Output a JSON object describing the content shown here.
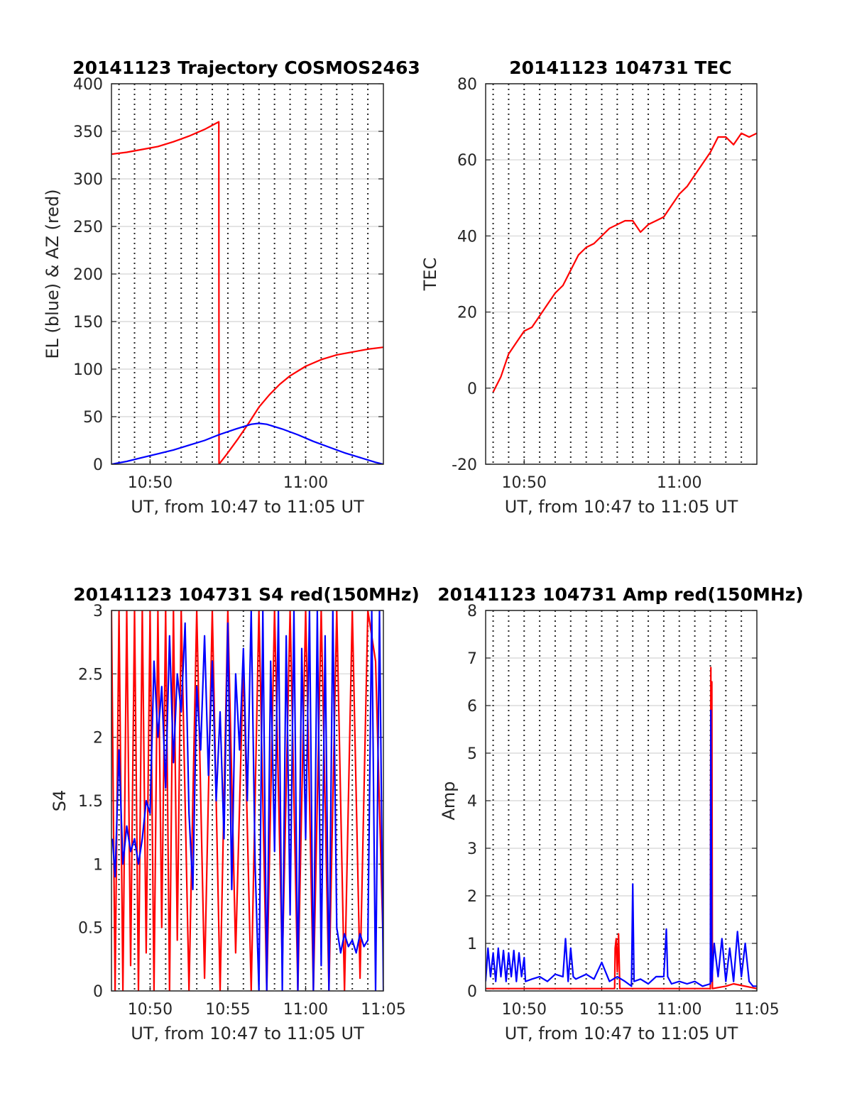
{
  "figure_title": "",
  "chart_data": [
    {
      "id": "trajectory",
      "type": "line",
      "title": "20141123 Trajectory COSMOS2463",
      "xlabel": "UT, from 10:47 to 11:05 UT",
      "ylabel": "EL (blue) & AZ (red)",
      "xlim": [
        "10:47:31",
        "11:05:00"
      ],
      "ylim": [
        0,
        400
      ],
      "yticks": [
        "0",
        "50",
        "100",
        "150",
        "200",
        "250",
        "300",
        "350",
        "400"
      ],
      "xticks": [
        {
          "t": "10:50",
          "label": "10:50"
        },
        {
          "t": "11:00",
          "label": "11:00"
        }
      ],
      "vgrid": [
        "10:48",
        "10:49",
        "10:50",
        "10:51",
        "10:52",
        "10:53",
        "10:54",
        "10:55",
        "10:56",
        "10:57",
        "10:58",
        "10:59",
        "11:00",
        "11:01",
        "11:02",
        "11:03",
        "11:04"
      ],
      "grid": true,
      "series": [
        {
          "color": "#ff0000",
          "x": [
            "10:47:31",
            "10:48:30",
            "10:49:30",
            "10:50:30",
            "10:51:30",
            "10:52:30",
            "10:53:30",
            "10:54:25",
            "10:54:26",
            "10:55:00",
            "10:55:40",
            "10:56:20",
            "10:57:00",
            "10:57:40",
            "10:58:20",
            "10:59:00",
            "11:00:00",
            "11:01:00",
            "11:02:00",
            "11:03:00",
            "11:04:00",
            "11:05:00"
          ],
          "y": [
            326,
            328,
            331,
            334,
            339,
            345,
            352,
            360,
            0,
            12,
            27,
            43,
            60,
            73,
            84,
            93,
            103,
            110,
            115,
            118,
            121,
            123
          ]
        },
        {
          "color": "#0000ff",
          "x": [
            "10:47:31",
            "10:48:30",
            "10:49:30",
            "10:50:30",
            "10:51:30",
            "10:52:30",
            "10:53:30",
            "10:54:25",
            "10:55:30",
            "10:56:30",
            "10:57:00",
            "10:57:30",
            "10:58:30",
            "10:59:30",
            "11:00:30",
            "11:01:30",
            "11:02:30",
            "11:03:30",
            "11:04:30",
            "11:05:00"
          ],
          "y": [
            0,
            3,
            7,
            11,
            15,
            20,
            25,
            31,
            37,
            42,
            43,
            42,
            37,
            31,
            24,
            18,
            12,
            7,
            2,
            0
          ]
        }
      ]
    },
    {
      "id": "tec",
      "type": "line",
      "title": "20141123 104731 TEC",
      "xlabel": "UT, from 10:47 to 11:05 UT",
      "ylabel": "TEC",
      "xlim": [
        "10:47:31",
        "11:05:00"
      ],
      "ylim": [
        -20,
        80
      ],
      "yticks": [
        "-20",
        "0",
        "20",
        "40",
        "60",
        "80"
      ],
      "xticks": [
        {
          "t": "10:50",
          "label": "10:50"
        },
        {
          "t": "11:00",
          "label": "11:00"
        }
      ],
      "vgrid": [
        "10:48",
        "10:49",
        "10:50",
        "10:51",
        "10:52",
        "10:53",
        "10:54",
        "10:55",
        "10:56",
        "10:57",
        "10:58",
        "10:59",
        "11:00",
        "11:01",
        "11:02",
        "11:03",
        "11:04"
      ],
      "grid": true,
      "series": [
        {
          "color": "#ff0000",
          "x": [
            "10:48:00",
            "10:48:30",
            "10:49:00",
            "10:49:30",
            "10:50:00",
            "10:50:30",
            "10:51:00",
            "10:51:30",
            "10:52:00",
            "10:52:30",
            "10:53:00",
            "10:53:30",
            "10:54:00",
            "10:54:30",
            "10:55:00",
            "10:55:30",
            "10:56:00",
            "10:56:30",
            "10:57:00",
            "10:57:30",
            "10:58:00",
            "10:58:30",
            "10:59:00",
            "10:59:30",
            "11:00:00",
            "11:00:30",
            "11:01:00",
            "11:01:30",
            "11:02:00",
            "11:02:30",
            "11:03:00",
            "11:03:30",
            "11:04:00",
            "11:04:30",
            "11:05:00"
          ],
          "y": [
            -1,
            3,
            9,
            12,
            15,
            16,
            19,
            22,
            25,
            27,
            31,
            35,
            37,
            38,
            40,
            42,
            43,
            44,
            44,
            41,
            43,
            44,
            45,
            48,
            51,
            53,
            56,
            59,
            62,
            66,
            66,
            64,
            67,
            66,
            67
          ]
        }
      ]
    },
    {
      "id": "s4",
      "type": "line",
      "title": "20141123 104731 S4 red(150MHz)",
      "xlabel": "UT, from 10:47 to 11:05 UT",
      "ylabel": "S4",
      "xlim": [
        "10:47:31",
        "11:05:00"
      ],
      "ylim": [
        0,
        3
      ],
      "yticks": [
        "0",
        "0.5",
        "1",
        "1.5",
        "2",
        "2.5",
        "3"
      ],
      "xticks": [
        {
          "t": "10:50",
          "label": "10:50"
        },
        {
          "t": "10:55",
          "label": "10:55"
        },
        {
          "t": "11:00",
          "label": "11:00"
        },
        {
          "t": "11:05",
          "label": "11:05"
        }
      ],
      "vgrid": [
        "10:48",
        "10:49",
        "10:50",
        "10:51",
        "10:52",
        "10:53",
        "10:54",
        "10:55",
        "10:56",
        "10:57",
        "10:58",
        "10:59",
        "11:00",
        "11:01",
        "11:02",
        "11:03",
        "11:04"
      ],
      "grid": true,
      "series": [
        {
          "color": "#ff0000",
          "x": [
            "10:47:31",
            "10:47:45",
            "10:48:00",
            "10:48:15",
            "10:48:30",
            "10:48:45",
            "10:49:00",
            "10:49:15",
            "10:49:30",
            "10:49:45",
            "10:50:00",
            "10:50:15",
            "10:50:30",
            "10:50:45",
            "10:51:00",
            "10:51:15",
            "10:51:30",
            "10:51:45",
            "10:52:00",
            "10:52:30",
            "10:53:00",
            "10:53:30",
            "10:54:00",
            "10:54:30",
            "10:55:00",
            "10:55:30",
            "10:56:00",
            "10:56:30",
            "10:57:00",
            "10:57:30",
            "10:58:00",
            "10:58:30",
            "10:59:00",
            "10:59:30",
            "11:00:00",
            "11:00:30",
            "11:01:00",
            "11:01:30",
            "11:02:00",
            "11:02:30",
            "11:03:00",
            "11:03:30",
            "11:04:00",
            "11:04:30",
            "11:05:00"
          ],
          "y": [
            3,
            0,
            3,
            0,
            3,
            0.2,
            3,
            0,
            3,
            0.3,
            3,
            0,
            3,
            0.5,
            3,
            0,
            3,
            0.4,
            3,
            0,
            3,
            0.1,
            3,
            0,
            3,
            0.3,
            2.6,
            0,
            3,
            0,
            3,
            0.2,
            3,
            0,
            3,
            0,
            3,
            0,
            3,
            0,
            3,
            0.1,
            3,
            2.6,
            0.3
          ]
        },
        {
          "color": "#0000ff",
          "x": [
            "10:47:35",
            "10:47:45",
            "10:48:00",
            "10:48:15",
            "10:48:30",
            "10:48:45",
            "10:49:00",
            "10:49:15",
            "10:49:30",
            "10:49:45",
            "10:50:00",
            "10:50:15",
            "10:50:30",
            "10:50:45",
            "10:51:00",
            "10:51:15",
            "10:51:30",
            "10:51:45",
            "10:52:00",
            "10:52:15",
            "10:52:30",
            "10:52:45",
            "10:53:00",
            "10:53:15",
            "10:53:30",
            "10:53:45",
            "10:54:00",
            "10:54:15",
            "10:54:30",
            "10:54:45",
            "10:55:00",
            "10:55:15",
            "10:55:30",
            "10:55:45",
            "10:56:00",
            "10:56:15",
            "10:56:30",
            "10:56:45",
            "10:57:00",
            "10:57:15",
            "10:57:30",
            "10:57:45",
            "10:58:00",
            "10:58:15",
            "10:58:30",
            "10:58:45",
            "10:59:00",
            "10:59:15",
            "10:59:30",
            "10:59:45",
            "11:00:00",
            "11:00:15",
            "11:00:30",
            "11:00:45",
            "11:01:00",
            "11:01:15",
            "11:01:30",
            "11:01:45",
            "11:02:00",
            "11:02:15",
            "11:02:30",
            "11:02:45",
            "11:03:00",
            "11:03:15",
            "11:03:30",
            "11:03:45",
            "11:04:00",
            "11:04:15",
            "11:04:30",
            "11:04:45",
            "11:05:00"
          ],
          "y": [
            1.2,
            0.9,
            1.9,
            1.0,
            1.3,
            1.1,
            1.2,
            1.0,
            1.2,
            1.5,
            1.4,
            2.6,
            2.0,
            2.4,
            1.6,
            2.8,
            1.8,
            2.5,
            2.2,
            2.9,
            1.4,
            0.8,
            2.4,
            1.9,
            2.8,
            1.7,
            2.6,
            1.5,
            2.2,
            1.2,
            2.9,
            0.8,
            2.5,
            1.9,
            2.7,
            1.5,
            3.0,
            1.0,
            0,
            3.0,
            0,
            2.6,
            1.1,
            3.0,
            0,
            2.8,
            0.6,
            3.0,
            0,
            2.7,
            1.2,
            3.0,
            0,
            3.0,
            0.2,
            2.8,
            0,
            3.0,
            0.5,
            0.3,
            0.45,
            0.35,
            0.4,
            0.3,
            0.45,
            0.35,
            0.4,
            3.0,
            0,
            3.0,
            0
          ]
        }
      ]
    },
    {
      "id": "amp",
      "type": "line",
      "title": "20141123 104731 Amp red(150MHz)",
      "xlabel": "UT, from 10:47 to 11:05 UT",
      "ylabel": "Amp",
      "xlim": [
        "10:47:31",
        "11:05:00"
      ],
      "ylim": [
        0,
        8
      ],
      "yticks": [
        "0",
        "1",
        "2",
        "3",
        "4",
        "5",
        "6",
        "7",
        "8"
      ],
      "xticks": [
        {
          "t": "10:50",
          "label": "10:50"
        },
        {
          "t": "10:55",
          "label": "10:55"
        },
        {
          "t": "11:00",
          "label": "11:00"
        },
        {
          "t": "11:05",
          "label": "11:05"
        }
      ],
      "vgrid": [
        "10:48",
        "10:49",
        "10:50",
        "10:51",
        "10:52",
        "10:53",
        "10:54",
        "10:55",
        "10:56",
        "10:57",
        "10:58",
        "10:59",
        "11:00",
        "11:01",
        "11:02",
        "11:03",
        "11:04"
      ],
      "grid": true,
      "series": [
        {
          "color": "#ff0000",
          "x": [
            "10:47:31",
            "10:55:50",
            "10:55:52",
            "10:55:56",
            "10:56:00",
            "10:56:05",
            "10:56:10",
            "11:02:00",
            "11:02:02",
            "11:02:04",
            "11:02:06",
            "11:02:08",
            "11:03:00",
            "11:03:30",
            "11:05:00"
          ],
          "y": [
            0.05,
            0.05,
            0.9,
            1.1,
            0.4,
            1.2,
            0.05,
            0.05,
            6.8,
            0.2,
            6.5,
            0.05,
            0.1,
            0.15,
            0.05
          ]
        },
        {
          "color": "#0000ff",
          "x": [
            "10:47:31",
            "10:47:40",
            "10:47:50",
            "10:48:00",
            "10:48:10",
            "10:48:20",
            "10:48:30",
            "10:48:40",
            "10:48:50",
            "10:49:00",
            "10:49:10",
            "10:49:20",
            "10:49:30",
            "10:49:40",
            "10:49:50",
            "10:50:00",
            "10:50:05",
            "10:50:30",
            "10:51:00",
            "10:51:30",
            "10:52:00",
            "10:52:30",
            "10:52:40",
            "10:52:50",
            "10:53:00",
            "10:53:10",
            "10:53:20",
            "10:53:40",
            "10:54:00",
            "10:54:30",
            "10:55:00",
            "10:55:30",
            "10:56:00",
            "10:56:30",
            "10:56:55",
            "10:57:00",
            "10:57:05",
            "10:57:30",
            "10:58:00",
            "10:58:30",
            "10:59:00",
            "10:59:10",
            "10:59:15",
            "10:59:30",
            "11:00:00",
            "11:00:30",
            "11:01:00",
            "11:01:30",
            "11:02:00",
            "11:02:02",
            "11:02:06",
            "11:02:15",
            "11:02:30",
            "11:02:45",
            "11:03:00",
            "11:03:15",
            "11:03:30",
            "11:03:45",
            "11:04:00",
            "11:04:15",
            "11:04:30",
            "11:04:45",
            "11:05:00"
          ],
          "y": [
            0.2,
            0.9,
            0.3,
            0.8,
            0.2,
            0.9,
            0.3,
            0.85,
            0.2,
            0.8,
            0.3,
            0.85,
            0.2,
            0.8,
            0.3,
            0.7,
            0.2,
            0.25,
            0.3,
            0.2,
            0.35,
            0.3,
            1.1,
            0.2,
            0.9,
            0.3,
            0.25,
            0.3,
            0.35,
            0.25,
            0.6,
            0.2,
            0.3,
            0.2,
            0.1,
            2.25,
            0.2,
            0.25,
            0.15,
            0.3,
            0.3,
            1.3,
            0.3,
            0.15,
            0.2,
            0.15,
            0.2,
            0.1,
            0.15,
            5.9,
            0.2,
            1.0,
            0.3,
            1.1,
            0.2,
            0.9,
            0.2,
            1.25,
            0.3,
            1.0,
            0.2,
            0.1,
            0.1
          ]
        }
      ]
    }
  ]
}
